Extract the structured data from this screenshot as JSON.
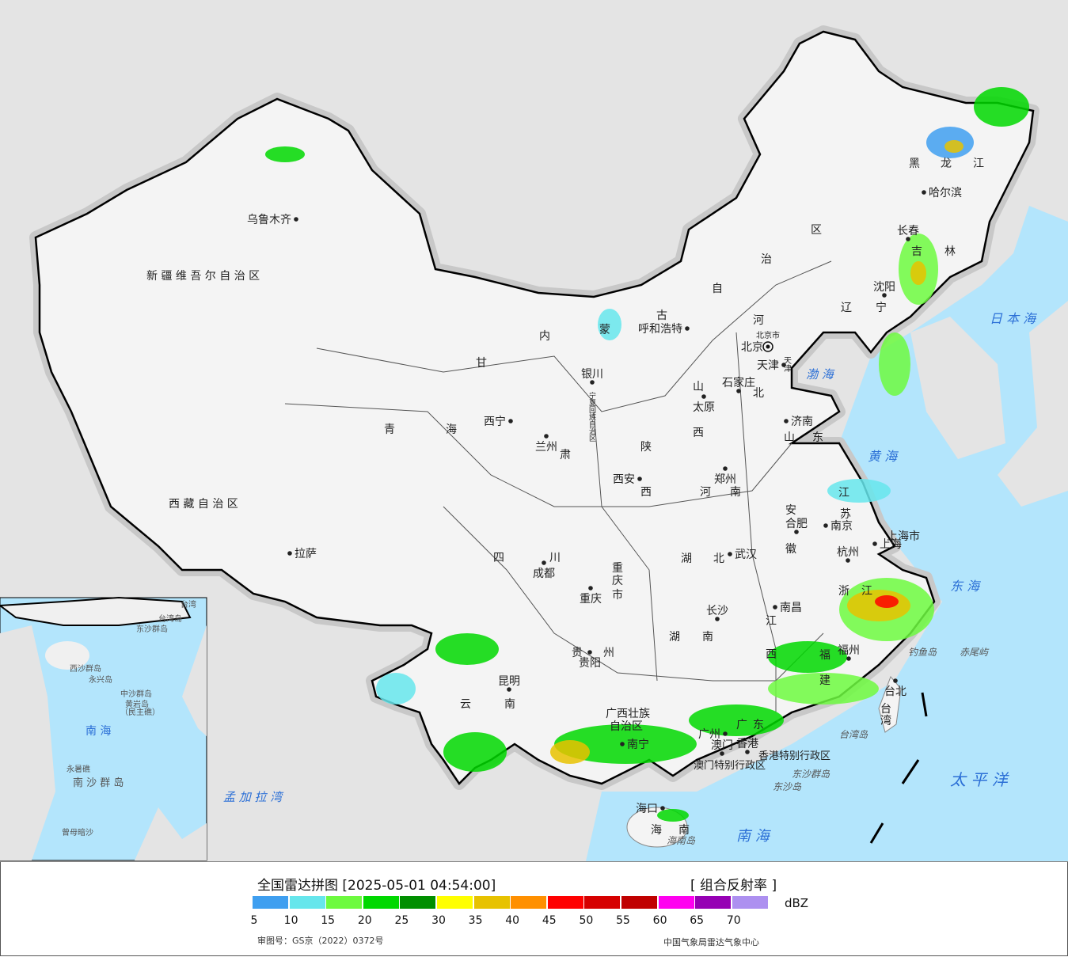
{
  "legend": {
    "title": "全国雷达拼图 [2025-05-01 04:54:00]",
    "product": "[ 组合反射率 ]",
    "unit": "dBZ",
    "colors": [
      "#3f9ff0",
      "#66e6ec",
      "#6dfa3f",
      "#00d800",
      "#008f00",
      "#ffff00",
      "#e7c200",
      "#ff9000",
      "#ff0000",
      "#d60000",
      "#c00000",
      "#ff00f0",
      "#9600b4",
      "#ad90f0"
    ],
    "ticks": [
      "5",
      "10",
      "15",
      "20",
      "25",
      "30",
      "35",
      "40",
      "45",
      "50",
      "55",
      "60",
      "65",
      "70"
    ],
    "approval": "审图号：GS京（2022）0372号",
    "credit": "中国气象局雷达气象中心"
  },
  "map": {
    "colors": {
      "sea": "#b3e5fc",
      "land_outside": "#e4e4e4",
      "china": "#f4f4f4",
      "border": "#000000",
      "province_line": "#444444"
    },
    "capital_icon": "beijing-star-circle-icon",
    "provinces": [
      "新 疆 维 吾 尔 自 治 区",
      "西 藏 自 治 区",
      "青",
      "海",
      "甘",
      "肃",
      "内",
      "蒙",
      "古",
      "自",
      "治",
      "区",
      "黑",
      "龙",
      "江",
      "吉",
      "林",
      "辽",
      "宁",
      "河",
      "北",
      "山",
      "西",
      "陕",
      "西",
      "山",
      "东",
      "河",
      "南",
      "江",
      "苏",
      "安",
      "徽",
      "湖",
      "北",
      "四",
      "川",
      "重",
      "庆",
      "市",
      "湖",
      "南",
      "江",
      "西",
      "浙",
      "江",
      "福",
      "建",
      "贵",
      "州",
      "云",
      "南",
      "广西壮族",
      "自治区",
      "广",
      "东",
      "宁夏回族自治区",
      "台",
      "湾",
      "海",
      "南",
      "上海市",
      "北京市",
      "天津",
      "香港特别行政区",
      "澳门特别行政区"
    ],
    "cities": [
      "乌鲁木齐",
      "拉萨",
      "西宁",
      "兰州",
      "银川",
      "呼和浩特",
      "北京",
      "天津",
      "石家庄",
      "太原",
      "济南",
      "郑州",
      "西安",
      "合肥",
      "南京",
      "上海",
      "杭州",
      "武汉",
      "成都",
      "重庆",
      "长沙",
      "南昌",
      "福州",
      "贵阳",
      "昆明",
      "南宁",
      "广州",
      "香港",
      "澳门",
      "海口",
      "台北",
      "长春",
      "沈阳",
      "哈尔滨"
    ],
    "other_labels": [
      "渤 海",
      "黄 海",
      "东 海",
      "日 本 海",
      "太 平 洋",
      "南 海",
      "孟 加 拉 湾",
      "钓鱼岛",
      "赤尾屿",
      "台湾岛",
      "东沙群岛",
      "东沙岛",
      "海南岛"
    ],
    "inset_labels": [
      "南 海",
      "西沙群岛",
      "永兴岛",
      "中沙群岛",
      "黄岩岛",
      "（民主礁）",
      "南 沙 群 岛",
      "永暑礁",
      "曾母暗沙",
      "东沙群岛",
      "台湾岛",
      "台湾"
    ]
  }
}
